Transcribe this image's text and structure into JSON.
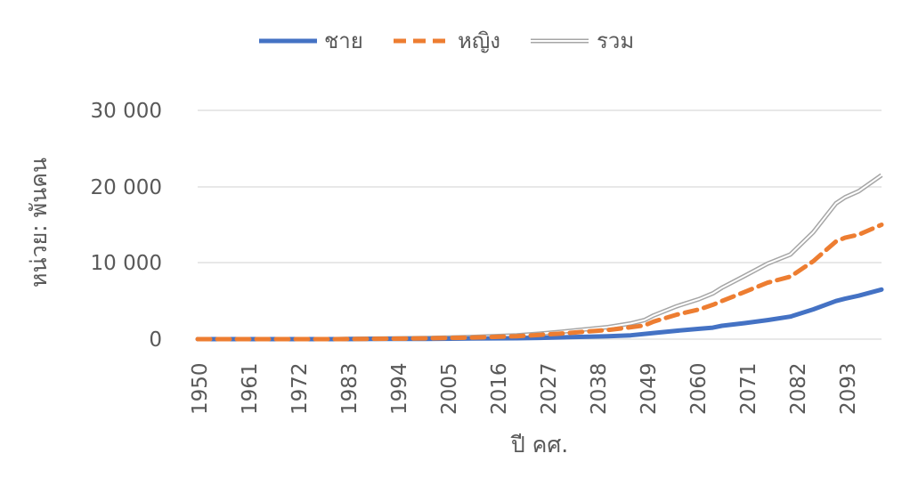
{
  "chart_data": {
    "type": "line",
    "title": "",
    "xlabel": "ปี คศ.",
    "ylabel": "หน่วย: พันคน",
    "x_tick_labels": [
      "1950",
      "1961",
      "1972",
      "1983",
      "1994",
      "2005",
      "2016",
      "2027",
      "2038",
      "2049",
      "2060",
      "2071",
      "2082",
      "2093"
    ],
    "y_tick_labels": [
      "0",
      "10 000",
      "20 000",
      "30 000"
    ],
    "ylim": [
      0,
      30000
    ],
    "xlim": [
      1950,
      2100
    ],
    "grid": true,
    "legend_position": "top",
    "series": [
      {
        "name": "ชาย",
        "color": "#4472C4",
        "style": "solid",
        "x": [
          1950,
          1960,
          1970,
          1980,
          1990,
          2000,
          2010,
          2020,
          2025,
          2030,
          2040,
          2045,
          2050,
          2055,
          2060,
          2063,
          2065,
          2070,
          2075,
          2080,
          2085,
          2090,
          2092,
          2095,
          2100
        ],
        "values": [
          0,
          0,
          0,
          0,
          20,
          40,
          80,
          120,
          160,
          230,
          380,
          500,
          800,
          1100,
          1350,
          1500,
          1750,
          2100,
          2500,
          2950,
          3900,
          5000,
          5300,
          5700,
          6500
        ]
      },
      {
        "name": "หญิง",
        "color": "#ED7D31",
        "style": "dashed",
        "x": [
          1950,
          1960,
          1970,
          1980,
          1990,
          2000,
          2010,
          2020,
          2025,
          2030,
          2040,
          2045,
          2048,
          2050,
          2055,
          2060,
          2063,
          2065,
          2070,
          2075,
          2080,
          2085,
          2090,
          2092,
          2095,
          2100
        ],
        "values": [
          0,
          0,
          0,
          0,
          50,
          100,
          200,
          380,
          550,
          750,
          1200,
          1550,
          1800,
          2300,
          3200,
          3900,
          4500,
          5000,
          6200,
          7400,
          8200,
          10200,
          12800,
          13300,
          13700,
          15000
        ]
      },
      {
        "name": "รวม",
        "color": "#A6A6A6",
        "style": "double",
        "x": [
          1950,
          1960,
          1970,
          1980,
          1990,
          2000,
          2010,
          2020,
          2025,
          2030,
          2040,
          2045,
          2048,
          2050,
          2055,
          2060,
          2063,
          2065,
          2070,
          2075,
          2080,
          2085,
          2090,
          2092,
          2095,
          2100
        ],
        "values": [
          0,
          0,
          0,
          0,
          70,
          140,
          280,
          500,
          710,
          980,
          1580,
          2050,
          2500,
          3100,
          4300,
          5250,
          6000,
          6750,
          8300,
          9900,
          11100,
          14000,
          17800,
          18600,
          19400,
          21500
        ]
      }
    ]
  }
}
